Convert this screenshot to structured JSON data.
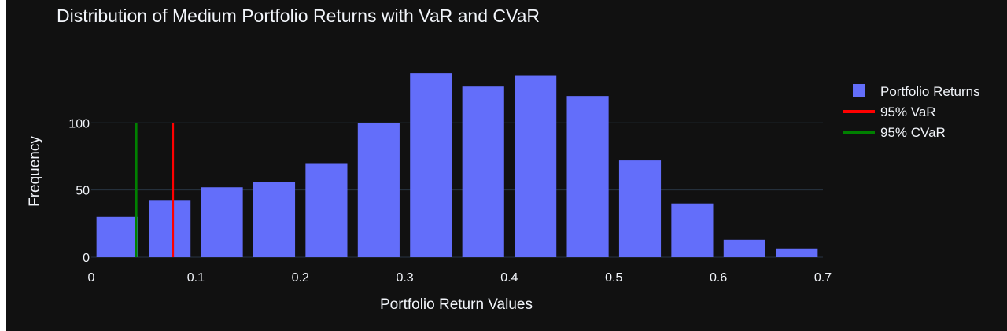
{
  "colors": {
    "background": "#111111",
    "bar": "#636efa",
    "var_line": "#ff0000",
    "cvar_line": "#008000",
    "grid": "#283442",
    "text": "#f2f5fa"
  },
  "chart_data": {
    "type": "bar",
    "title": "Distribution of Medium Portfolio Returns with VaR and CVaR",
    "xlabel": "Portfolio Return Values",
    "ylabel": "Frequency",
    "xlim": [
      0,
      0.7
    ],
    "ylim": [
      0,
      140
    ],
    "xticks": [
      0,
      0.1,
      0.2,
      0.3,
      0.4,
      0.5,
      0.6,
      0.7
    ],
    "xtick_labels": [
      "0",
      "0.1",
      "0.2",
      "0.3",
      "0.4",
      "0.5",
      "0.6",
      "0.7"
    ],
    "yticks": [
      0,
      50,
      100
    ],
    "ytick_labels": [
      "0",
      "50",
      "100"
    ],
    "grid": true,
    "legend_position": "right",
    "bin_start": 0.005,
    "bin_width": 0.05,
    "bars": [
      {
        "x0": 0.005,
        "x1": 0.045,
        "value": 30
      },
      {
        "x0": 0.055,
        "x1": 0.095,
        "value": 42
      },
      {
        "x0": 0.105,
        "x1": 0.145,
        "value": 52
      },
      {
        "x0": 0.155,
        "x1": 0.195,
        "value": 56
      },
      {
        "x0": 0.205,
        "x1": 0.245,
        "value": 70
      },
      {
        "x0": 0.255,
        "x1": 0.295,
        "value": 100
      },
      {
        "x0": 0.305,
        "x1": 0.345,
        "value": 137
      },
      {
        "x0": 0.355,
        "x1": 0.395,
        "value": 127
      },
      {
        "x0": 0.405,
        "x1": 0.445,
        "value": 135
      },
      {
        "x0": 0.455,
        "x1": 0.495,
        "value": 120
      },
      {
        "x0": 0.505,
        "x1": 0.545,
        "value": 72
      },
      {
        "x0": 0.555,
        "x1": 0.595,
        "value": 40
      },
      {
        "x0": 0.605,
        "x1": 0.645,
        "value": 13
      },
      {
        "x0": 0.655,
        "x1": 0.695,
        "value": 6
      }
    ],
    "series": [
      {
        "name": "Portfolio Returns",
        "kind": "histogram",
        "color": "#636efa"
      },
      {
        "name": "95% VaR",
        "kind": "vline",
        "x": 0.078,
        "y_range": [
          0,
          100
        ],
        "color": "#ff0000"
      },
      {
        "name": "95% CVaR",
        "kind": "vline",
        "x": 0.043,
        "y_range": [
          0,
          100
        ],
        "color": "#008000"
      }
    ]
  }
}
